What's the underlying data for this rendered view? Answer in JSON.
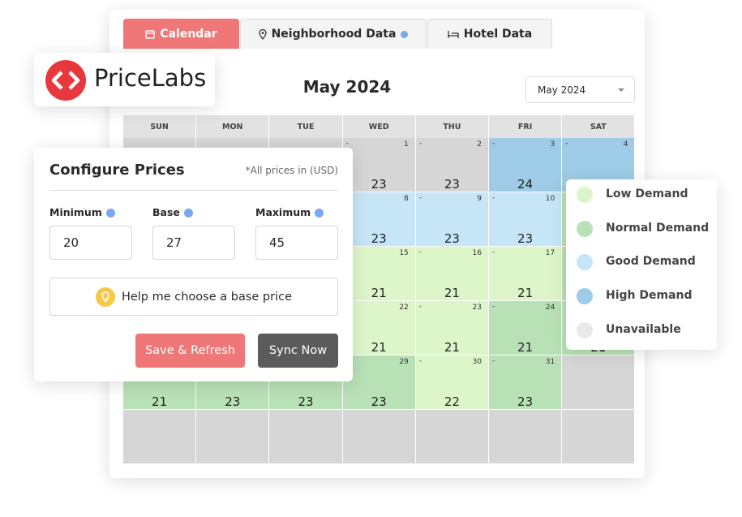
{
  "logo": {
    "text": "PriceLabs"
  },
  "tabs": [
    "Calendar",
    "Neighborhood Data",
    "Hotel Data"
  ],
  "calendar": {
    "title": "May 2024",
    "dropdown": "May 2024",
    "weekdays": [
      "SUN",
      "MON",
      "TUE",
      "WED",
      "THU",
      "FRI",
      "SAT"
    ],
    "dash": "-",
    "cells": [
      {
        "color": "#d6d6d6"
      },
      {
        "color": "#d6d6d6"
      },
      {
        "color": "#d6d6d6"
      },
      {
        "color": "#d6d6d6",
        "day": "1",
        "price": "23"
      },
      {
        "color": "#d6d6d6",
        "day": "2",
        "price": "23"
      },
      {
        "color": "#9ecbe5",
        "day": "3",
        "price": "24"
      },
      {
        "color": "#9ecbe5",
        "day": "4"
      },
      {
        "color": "#d6d6d6"
      },
      {
        "color": "#d6d6d6"
      },
      {
        "color": "#d6d6d6"
      },
      {
        "color": "#c6e6f8",
        "day": "8",
        "price": "23"
      },
      {
        "color": "#c6e6f8",
        "day": "9",
        "price": "23"
      },
      {
        "color": "#c6e6f8",
        "day": "10",
        "price": "23"
      },
      {
        "color": "#b9e1b6"
      },
      {
        "color": "#d6d6d6"
      },
      {
        "color": "#d6d6d6"
      },
      {
        "color": "#d6d6d6"
      },
      {
        "color": "#ddf6c9",
        "day": "15",
        "price": "21"
      },
      {
        "color": "#ddf6c9",
        "day": "16",
        "price": "21"
      },
      {
        "color": "#ddf6c9",
        "day": "17",
        "price": "21"
      },
      {
        "color": "#b9e1b6"
      },
      {
        "color": "#d6d6d6"
      },
      {
        "color": "#d6d6d6"
      },
      {
        "color": "#d6d6d6"
      },
      {
        "color": "#ddf6c9",
        "day": "22",
        "price": "21"
      },
      {
        "color": "#ddf6c9",
        "day": "23",
        "price": "21"
      },
      {
        "color": "#b9e1b6",
        "day": "24",
        "price": "21"
      },
      {
        "color": "#b9e1b6",
        "price": "21"
      },
      {
        "color": "#b9e1b6",
        "price": "21"
      },
      {
        "color": "#b9e1b6",
        "price": "23"
      },
      {
        "color": "#b9e1b6",
        "price": "23"
      },
      {
        "color": "#b9e1b6",
        "day": "29",
        "price": "23"
      },
      {
        "color": "#ddf6c9",
        "day": "30",
        "price": "22"
      },
      {
        "color": "#b9e1b6",
        "day": "31",
        "price": "23"
      },
      {
        "color": "#d6d6d6"
      },
      {
        "color": "#d6d6d6"
      },
      {
        "color": "#d6d6d6"
      },
      {
        "color": "#d6d6d6"
      },
      {
        "color": "#d6d6d6"
      },
      {
        "color": "#d6d6d6"
      },
      {
        "color": "#d6d6d6"
      },
      {
        "color": "#d6d6d6"
      }
    ]
  },
  "legend": [
    {
      "label": "Low Demand",
      "color": "#ddf6c9"
    },
    {
      "label": "Normal Demand",
      "color": "#b9e1b6"
    },
    {
      "label": "Good Demand",
      "color": "#c6e6f8"
    },
    {
      "label": "High Demand",
      "color": "#9ecbe5"
    },
    {
      "label": "Unavailable",
      "color": "#e9e9e9"
    }
  ],
  "configure": {
    "title": "Configure Prices",
    "note": "*All prices in (USD)",
    "fields": [
      {
        "label": "Minimum",
        "value": "20"
      },
      {
        "label": "Base",
        "value": "27"
      },
      {
        "label": "Maximum",
        "value": "45"
      }
    ],
    "help": "Help me choose a base price",
    "save": "Save & Refresh",
    "sync": "Sync Now"
  }
}
